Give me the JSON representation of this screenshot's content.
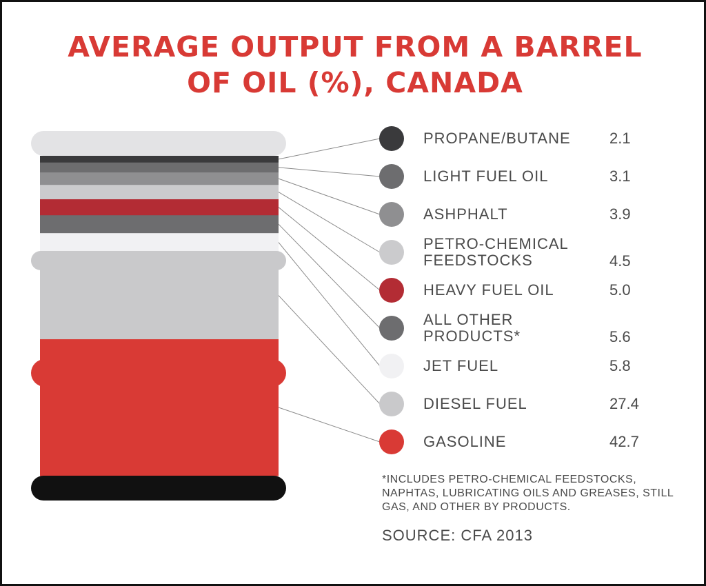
{
  "title_lines": [
    "AVERAGE OUTPUT FROM A BARREL",
    "OF OIL (%), CANADA"
  ],
  "footnote": "*INCLUDES PETRO-CHEMICAL FEEDSTOCKS, NAPHTAS, LUBRICATING OILS AND GREASES, STILL GAS, AND OTHER BY PRODUCTS.",
  "source": "SOURCE: CFA 2013",
  "colors": {
    "title": "#d83a35",
    "barrel_cap": "#e3e3e5",
    "barrel_base": "#111111"
  },
  "chart_data": {
    "type": "bar",
    "title": "AVERAGE OUTPUT FROM A BARREL OF OIL (%), CANADA",
    "categories": [
      "PROPANE/BUTANE",
      "LIGHT FUEL OIL",
      "ASHPHALT",
      "PETRO-CHEMICAL FEEDSTOCKS",
      "HEAVY FUEL OIL",
      "ALL OTHER PRODUCTS*",
      "JET FUEL",
      "DIESEL FUEL",
      "GASOLINE"
    ],
    "values": [
      2.1,
      3.1,
      3.9,
      4.5,
      5.0,
      5.6,
      5.8,
      27.4,
      42.7
    ],
    "value_labels": [
      "2.1",
      "3.1",
      "3.9",
      "4.5",
      "5.0",
      "5.6",
      "5.8",
      "27.4",
      "42.7"
    ],
    "label_lines": [
      [
        "PROPANE/BUTANE"
      ],
      [
        "LIGHT FUEL OIL"
      ],
      [
        "ASHPHALT"
      ],
      [
        "PETRO-CHEMICAL",
        "FEEDSTOCKS"
      ],
      [
        "HEAVY FUEL OIL"
      ],
      [
        "ALL OTHER",
        "PRODUCTS*"
      ],
      [
        "JET FUEL"
      ],
      [
        "DIESEL FUEL"
      ],
      [
        "GASOLINE"
      ]
    ],
    "colors": [
      "#3a3a3c",
      "#6d6d6f",
      "#8f8f91",
      "#cbcbcd",
      "#b32c34",
      "#6d6d6f",
      "#f1f1f3",
      "#c9c9cb",
      "#d93a35"
    ],
    "stacking": "top-to-bottom"
  }
}
